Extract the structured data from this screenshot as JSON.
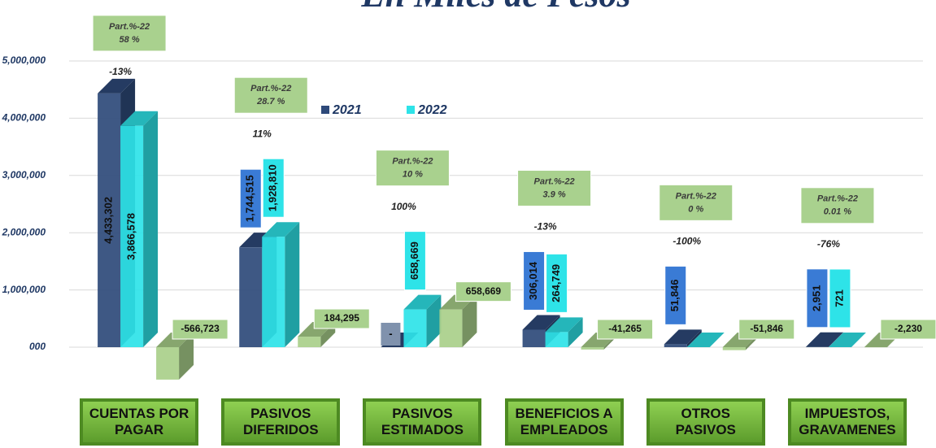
{
  "chart_data": {
    "type": "bar",
    "title": "En Miles de Pesos",
    "categories": [
      "CUENTAS POR PAGAR",
      "PASIVOS DIFERIDOS",
      "PASIVOS ESTIMADOS",
      "BENEFICIOS A EMPLEADOS",
      "OTROS PASIVOS",
      "IMPUESTOS, GRAVAMENES"
    ],
    "series": [
      {
        "name": "2021",
        "color": "#2e4a7a",
        "values": [
          4433302,
          1744515,
          0,
          306014,
          51846,
          2951
        ],
        "value_labels": [
          "4,433,302",
          "1,744,515",
          "-",
          "306,014",
          "51,846",
          "2,951"
        ]
      },
      {
        "name": "2022",
        "color": "#2ee3e8",
        "values": [
          3866578,
          1928810,
          658669,
          264749,
          0,
          721
        ],
        "value_labels": [
          "3,866,578",
          "1,928,810",
          "658,669",
          "264,749",
          null,
          "721"
        ]
      }
    ],
    "differences": {
      "color": "#a9cf8a",
      "values": [
        -566723,
        184295,
        658669,
        -41265,
        -51846,
        -2230
      ],
      "value_labels": [
        "-566,723",
        "184,295",
        "658,669",
        "-41,265",
        "-51,846",
        "-2,230"
      ]
    },
    "change_labels": [
      "-13%",
      "11%",
      "100%",
      "-13%",
      "-100%",
      "-76%"
    ],
    "share_title": "Part.%-22",
    "shares": [
      58,
      28.7,
      10,
      3.9,
      0,
      0.01
    ],
    "share_labels": [
      "58 %",
      "28.7 %",
      "10 %",
      "3.9 %",
      "0 %",
      "0.01 %"
    ],
    "ylim": [
      -1000000,
      5500000
    ],
    "yticks": [
      {
        "value": 0,
        "label": "000"
      },
      {
        "value": 1000000,
        "label": "1,000,000"
      },
      {
        "value": 2000000,
        "label": "2,000,000"
      },
      {
        "value": 3000000,
        "label": "3,000,000"
      },
      {
        "value": 4000000,
        "label": "4,000,000"
      },
      {
        "value": 5000000,
        "label": "5,000,000"
      }
    ],
    "grid": true
  }
}
